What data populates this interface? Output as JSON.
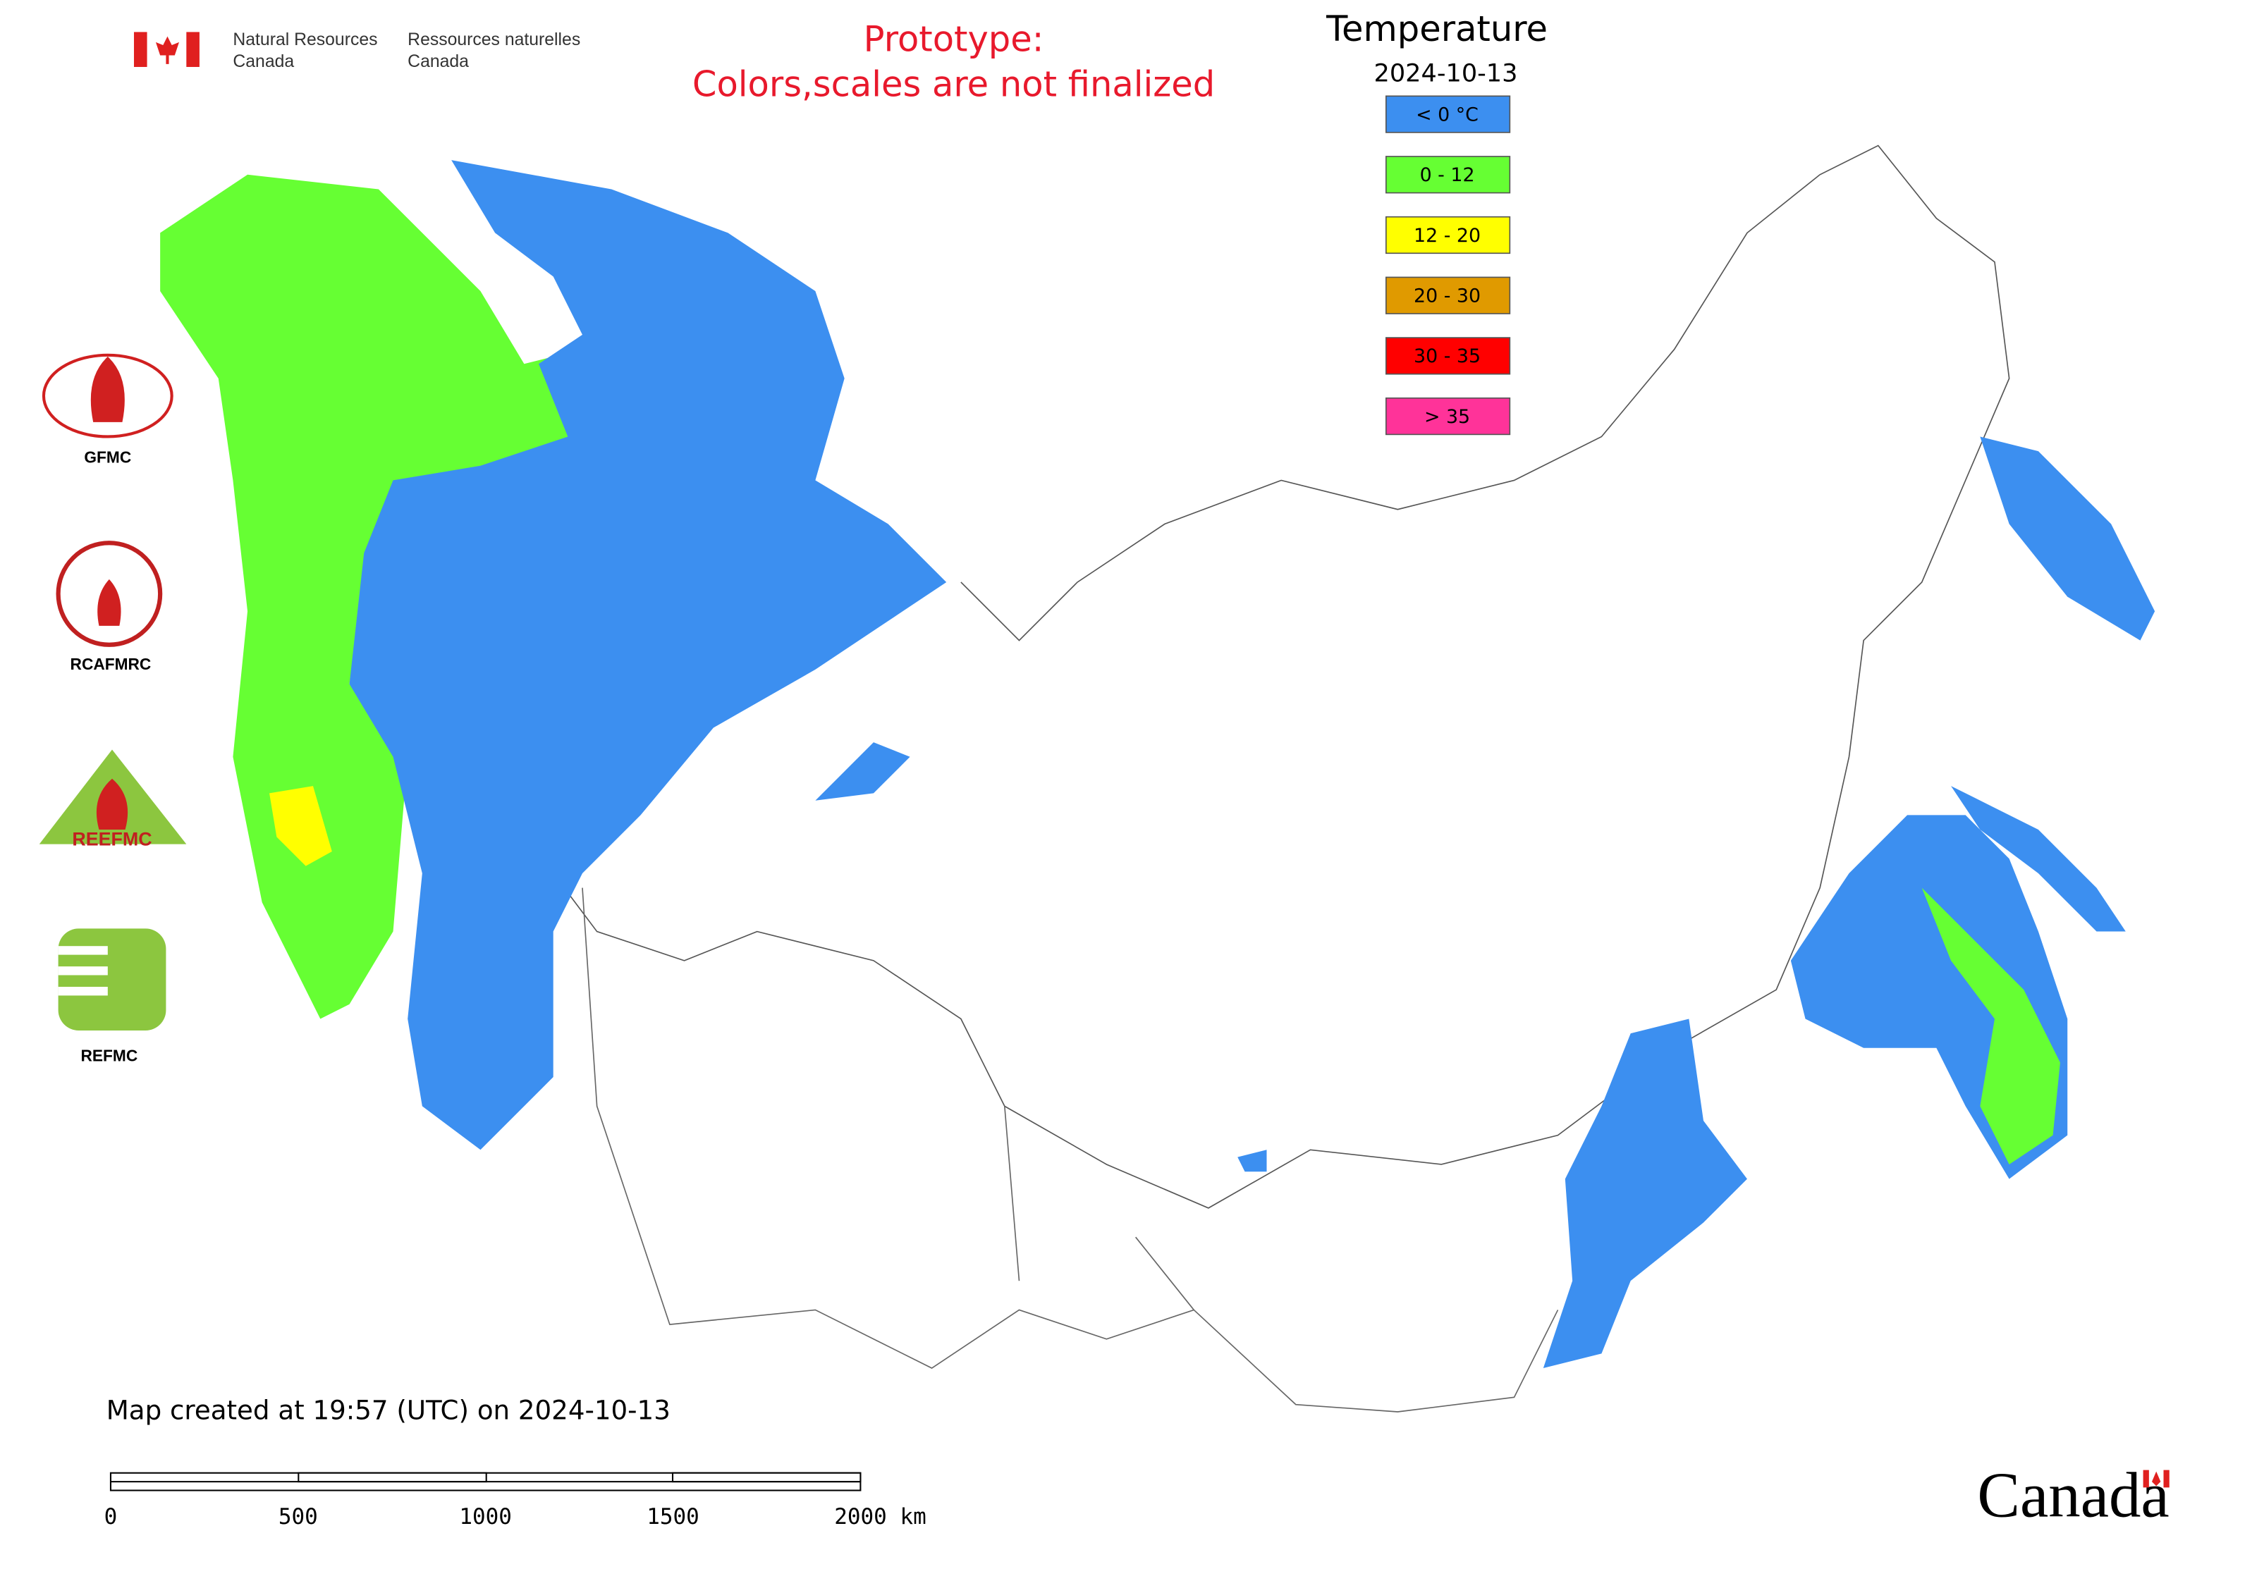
{
  "header": {
    "agency_en_1": "Natural Resources",
    "agency_en_2": "Canada",
    "agency_fr_1": "Ressources naturelles",
    "agency_fr_2": "Canada"
  },
  "notice": {
    "line1": "Prototype:",
    "line2": "Colors,scales are not finalized"
  },
  "legend": {
    "title": "Temperature",
    "date": "2024-10-13",
    "items": [
      {
        "label": "< 0 °C",
        "color": "#3c8ff0"
      },
      {
        "label": "0 - 12",
        "color": "#66ff33"
      },
      {
        "label": "12 - 20",
        "color": "#ffff00"
      },
      {
        "label": "20 - 30",
        "color": "#e09a00"
      },
      {
        "label": "30 - 35",
        "color": "#ff0000"
      },
      {
        "label": "> 35",
        "color": "#ff3399"
      }
    ]
  },
  "logos": [
    "GFMC",
    "RCAFMRC",
    "REFMC"
  ],
  "logo_reefmc": "REEFMC",
  "footer": {
    "created": "Map created at 19:57 (UTC) on 2024-10-13",
    "scale_ticks": [
      "0",
      "500",
      "1000",
      "1500",
      "2000 km"
    ]
  },
  "wordmark": "Canada"
}
